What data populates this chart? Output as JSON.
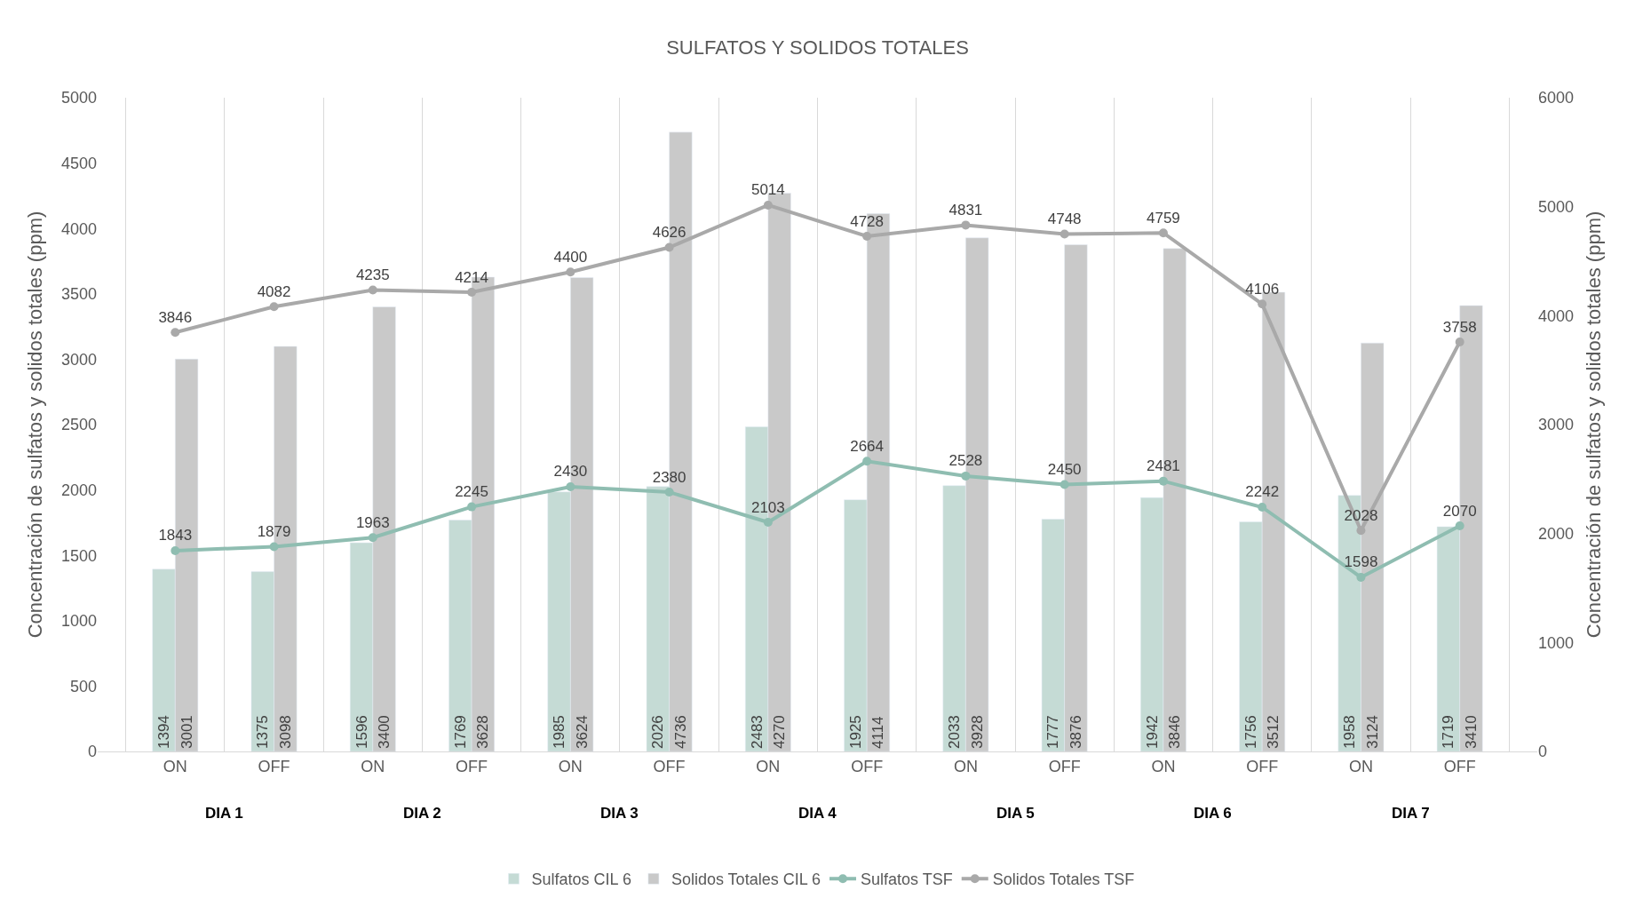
{
  "chart_data": {
    "type": "bar",
    "title": "SULFATOS Y SOLIDOS TOTALES",
    "ylabel": "Concentración de sulfatos y solidos totales (ppm)",
    "y2label": "Concentración de sulfatos y solidos totales (ppm)",
    "categories": [
      "ON",
      "OFF",
      "ON",
      "OFF",
      "ON",
      "OFF",
      "ON",
      "OFF",
      "ON",
      "OFF",
      "ON",
      "OFF",
      "ON",
      "OFF"
    ],
    "annotations": [
      "DIA 1",
      "DIA 2",
      "DIA 3",
      "DIA 4",
      "DIA 5",
      "DIA 6",
      "DIA 7"
    ],
    "series": [
      {
        "name": "Sulfatos CIL 6",
        "color": "#c5dbd5",
        "values": [
          1394,
          1375,
          1596,
          1769,
          1985,
          2026,
          2483,
          1925,
          2033,
          1777,
          1942,
          1756,
          1958,
          1719
        ]
      },
      {
        "name": "Solidos Totales CIL 6",
        "color": "#c9c9c9",
        "values": [
          3001,
          3098,
          3400,
          3628,
          3624,
          4736,
          4270,
          4114,
          3928,
          3876,
          3846,
          3512,
          3124,
          3410
        ]
      },
      {
        "name": "Sulfatos TSF",
        "type": "line",
        "axis": "y2",
        "color": "#8fbdb1",
        "values": [
          1843,
          1879,
          1963,
          2245,
          2430,
          2380,
          2103,
          2664,
          2528,
          2450,
          2481,
          2242,
          1598,
          2070
        ]
      },
      {
        "name": "Solidos Totales TSF",
        "type": "line",
        "axis": "y2",
        "color": "#a9a9a9",
        "values": [
          3846,
          4082,
          4235,
          4214,
          4400,
          4626,
          5014,
          4728,
          4831,
          4748,
          4759,
          4106,
          2028,
          3758
        ]
      }
    ],
    "ylim": [
      0,
      5000
    ],
    "yticks": [
      0,
      500,
      1000,
      1500,
      2000,
      2500,
      3000,
      3500,
      4000,
      4500,
      5000
    ],
    "y2lim": [
      0,
      6000
    ],
    "y2ticks": [
      0,
      1000,
      2000,
      3000,
      4000,
      5000,
      6000
    ],
    "data_labels": true,
    "grid": "x",
    "legend": "bottom",
    "marker": "circle"
  }
}
